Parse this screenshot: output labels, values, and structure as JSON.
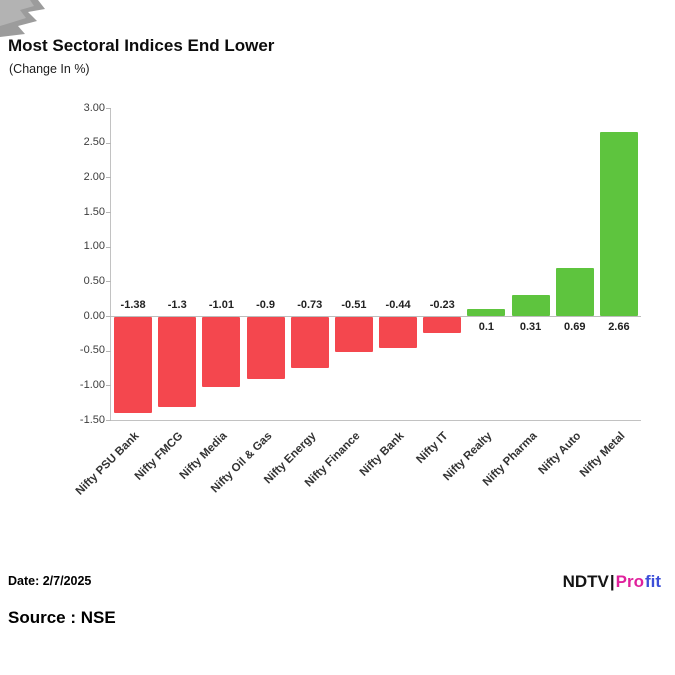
{
  "header": {
    "title": "Most Sectoral Indices End Lower",
    "subtitle": "(Change In %)"
  },
  "footer": {
    "date_label": "Date: 2/7/2025",
    "source_label": "Source : NSE"
  },
  "logo": {
    "parts": [
      {
        "text": "NDTV",
        "color": "#141414"
      },
      {
        "text": "|",
        "color": "#141414"
      },
      {
        "text": "Pro",
        "color": "#e0219c"
      },
      {
        "text": "fit",
        "color": "#3d4fd8"
      }
    ]
  },
  "chart_data": {
    "type": "bar",
    "title": "Most Sectoral Indices End Lower",
    "subtitle": "(Change In %)",
    "categories": [
      "Nifty PSU Bank",
      "Nifty FMCG",
      "Nifty Media",
      "Nifty Oil & Gas",
      "Nifty Energy",
      "Nifty Finance",
      "Nifty Bank",
      "Nifty IT",
      "Nifty Realty",
      "Nifty Pharma",
      "Nifty Auto",
      "Nifty Metal"
    ],
    "values": [
      -1.38,
      -1.3,
      -1.01,
      -0.9,
      -0.73,
      -0.51,
      -0.44,
      -0.23,
      0.1,
      0.31,
      0.69,
      2.66
    ],
    "value_labels": [
      "-1.38",
      "-1.3",
      "-1.01",
      "-0.9",
      "-0.73",
      "-0.51",
      "-0.44",
      "-0.23",
      "0.1",
      "0.31",
      "0.69",
      "2.66"
    ],
    "xlabel": "",
    "ylabel": "",
    "ylim": [
      -1.5,
      3.0
    ],
    "ytick_step": 0.5,
    "grid": false,
    "legend": null,
    "colors": {
      "positive": "#5ec43e",
      "negative": "#f4474e"
    }
  }
}
